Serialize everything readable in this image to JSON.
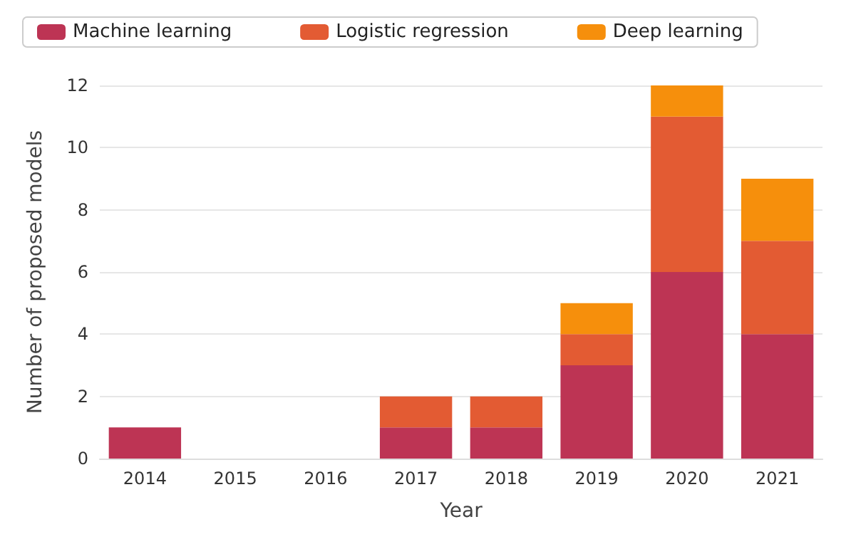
{
  "chart_data": {
    "type": "bar",
    "stacked": true,
    "xlabel": "Year",
    "ylabel": "Number of proposed models",
    "categories": [
      "2014",
      "2015",
      "2016",
      "2017",
      "2018",
      "2019",
      "2020",
      "2021"
    ],
    "series": [
      {
        "name": "Machine learning",
        "color": "#bd3454",
        "values": [
          1,
          0,
          0,
          1,
          1,
          3,
          6,
          4
        ]
      },
      {
        "name": "Logistic regression",
        "color": "#e35b33",
        "values": [
          0,
          0,
          0,
          1,
          1,
          1,
          5,
          3
        ]
      },
      {
        "name": "Deep learning",
        "color": "#f68f0c",
        "values": [
          0,
          0,
          0,
          0,
          0,
          1,
          1,
          2
        ]
      }
    ],
    "ylim": [
      0,
      12
    ],
    "yticks": [
      0,
      2,
      4,
      6,
      8,
      10,
      12
    ],
    "grid": "y",
    "legend": "top"
  }
}
